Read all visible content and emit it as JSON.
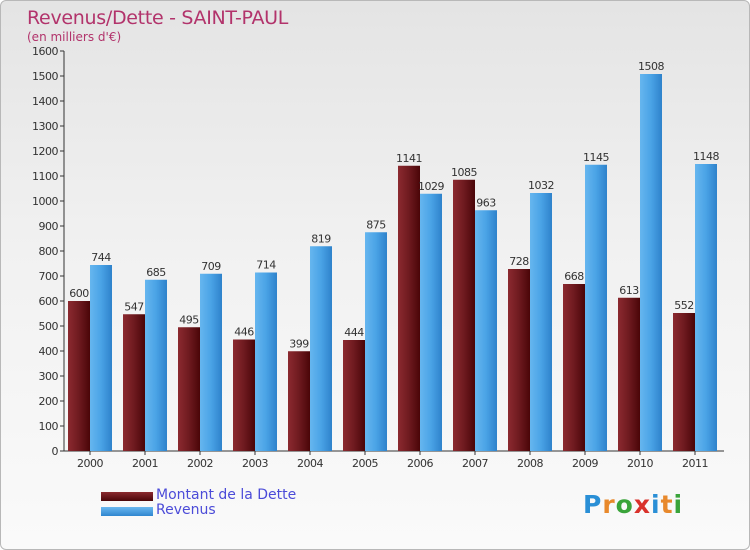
{
  "chart_data": {
    "type": "bar",
    "title": "Revenus/Dette - SAINT-PAUL",
    "subtitle": "(en milliers d'€)",
    "categories": [
      "2000",
      "2001",
      "2002",
      "2003",
      "2004",
      "2005",
      "2006",
      "2007",
      "2008",
      "2009",
      "2010",
      "2011"
    ],
    "series": [
      {
        "name": "Montant de la Dette",
        "color": "#7a1a1f",
        "values": [
          600,
          547,
          495,
          446,
          399,
          444,
          1141,
          1085,
          728,
          668,
          613,
          552
        ]
      },
      {
        "name": "Revenus",
        "color": "#4aa3e6",
        "values": [
          744,
          685,
          709,
          714,
          819,
          875,
          1029,
          963,
          1032,
          1145,
          1508,
          1148
        ]
      }
    ],
    "ylim": [
      0,
      1600
    ],
    "yticks": [
      0,
      100,
      200,
      300,
      400,
      500,
      600,
      700,
      800,
      900,
      1000,
      1100,
      1200,
      1300,
      1400,
      1500,
      1600
    ],
    "grid": false,
    "legend_position": "bottom-left"
  },
  "logo": {
    "text": "Proxiti",
    "letters": [
      {
        "ch": "P",
        "color": "#2a8fd6"
      },
      {
        "ch": "r",
        "color": "#e8892c"
      },
      {
        "ch": "o",
        "color": "#3aa43a"
      },
      {
        "ch": "x",
        "color": "#d9312b"
      },
      {
        "ch": "i",
        "color": "#2a8fd6"
      },
      {
        "ch": "t",
        "color": "#e8892c"
      },
      {
        "ch": "i",
        "color": "#3aa43a"
      }
    ]
  }
}
